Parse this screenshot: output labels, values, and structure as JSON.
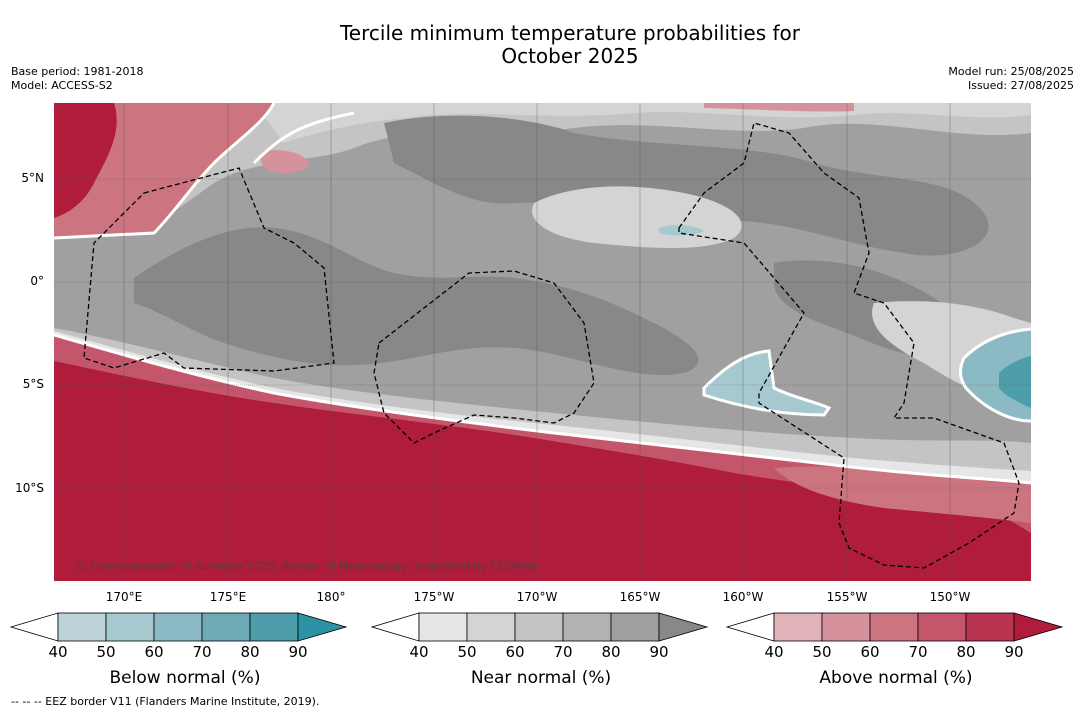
{
  "title": {
    "line1": "Tercile minimum temperature probabilities for",
    "line2": "October 2025"
  },
  "meta": {
    "base_period": "Base period: 1981-2018",
    "model": "Model: ACCESS-S2",
    "model_run": "Model run: 25/08/2025",
    "issued": "Issued: 27/08/2025"
  },
  "map": {
    "latitude_labels": [
      "5°N",
      "0°",
      "5°S",
      "10°S"
    ],
    "longitude_labels": [
      "170°E",
      "175°E",
      "180°",
      "175°W",
      "170°W",
      "165°W",
      "160°W",
      "155°W",
      "150°W"
    ],
    "copyright": "© Commonwealth of Australia 2025, Bureau of Meteorology, supported by COSPPac",
    "border_color": "#000000"
  },
  "colorbars": {
    "below": {
      "title": "Below normal (%)",
      "ticks": [
        "40",
        "50",
        "60",
        "70",
        "80",
        "90"
      ],
      "colors": [
        "#ffffff",
        "#bdd3d9",
        "#a6c8cf",
        "#8cbac4",
        "#6eaab6",
        "#4d9dab",
        "#2b93a3"
      ]
    },
    "near": {
      "title": "Near normal (%)",
      "ticks": [
        "40",
        "50",
        "60",
        "70",
        "80",
        "90"
      ],
      "colors": [
        "#ffffff",
        "#e6e6e6",
        "#d4d4d4",
        "#c4c4c4",
        "#b2b2b2",
        "#a0a0a0",
        "#888888"
      ]
    },
    "above": {
      "title": "Above normal (%)",
      "ticks": [
        "40",
        "50",
        "60",
        "70",
        "80",
        "90"
      ],
      "colors": [
        "#ffffff",
        "#e0b3b9",
        "#d6929c",
        "#cc7580",
        "#c3566a",
        "#b93450",
        "#b01c3b"
      ]
    }
  },
  "footnote": "--  --  -- EEZ border V11 (Flanders Marine Institute, 2019)."
}
